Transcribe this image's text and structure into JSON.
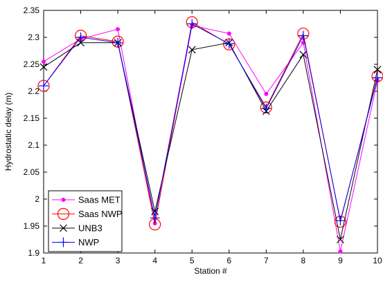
{
  "chart_data": {
    "type": "line",
    "title": "",
    "xlabel": "Station #",
    "ylabel": "Hydrostatic delay (m)",
    "xlim": [
      1,
      10
    ],
    "ylim": [
      1.9,
      2.35
    ],
    "x": [
      1,
      2,
      3,
      4,
      5,
      6,
      7,
      8,
      9,
      10
    ],
    "x_ticks": [
      "1",
      "2",
      "3",
      "4",
      "5",
      "6",
      "7",
      "8",
      "9",
      "10"
    ],
    "y_ticks": [
      "1.9",
      "1.95",
      "2",
      "2.05",
      "2.1",
      "2.15",
      "2.2",
      "2.25",
      "2.3",
      "2.35"
    ],
    "grid": false,
    "legend_position": "bottom-left",
    "series": [
      {
        "name": "Saas MET",
        "color": "#ff00ff",
        "marker": "dot",
        "values": [
          2.255,
          2.297,
          2.315,
          1.955,
          2.322,
          2.307,
          2.195,
          2.29,
          1.903,
          2.22
        ]
      },
      {
        "name": "Saas NWP",
        "color": "#ff0000",
        "marker": "circle",
        "values": [
          2.21,
          2.303,
          2.292,
          1.953,
          2.328,
          2.287,
          2.17,
          2.307,
          1.958,
          2.228
        ]
      },
      {
        "name": "UNB3",
        "color": "#000000",
        "marker": "x",
        "values": [
          2.245,
          2.29,
          2.29,
          1.977,
          2.277,
          2.29,
          2.163,
          2.268,
          1.925,
          2.24
        ]
      },
      {
        "name": "NWP",
        "color": "#0000ff",
        "marker": "plus",
        "values": [
          2.21,
          2.3,
          2.29,
          1.965,
          2.325,
          2.288,
          2.168,
          2.303,
          1.96,
          2.225
        ]
      }
    ]
  }
}
